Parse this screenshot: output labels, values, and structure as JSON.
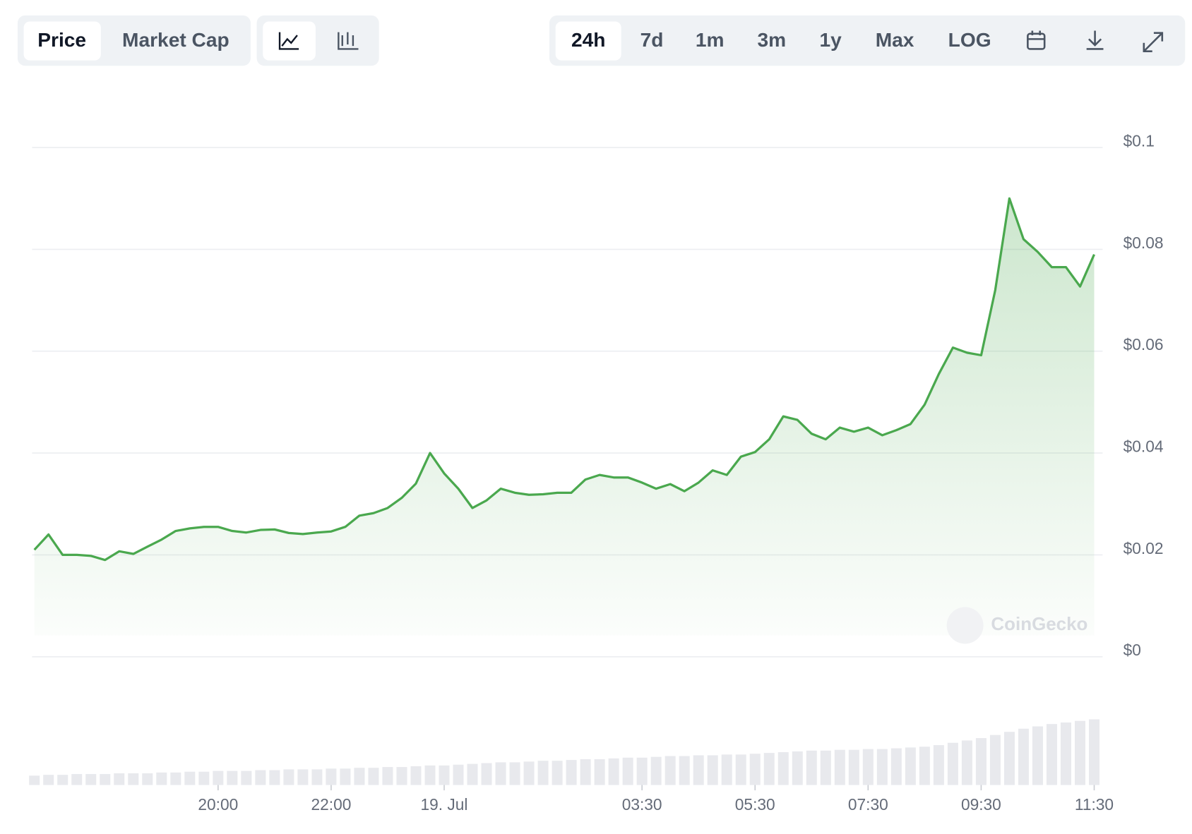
{
  "header": {
    "tabs": [
      "Price",
      "Market Cap"
    ],
    "ranges": [
      "24h",
      "7d",
      "1m",
      "3m",
      "1y",
      "Max",
      "LOG"
    ]
  },
  "watermark": "CoinGecko",
  "chart_data": {
    "type": "line",
    "color": "#4aa84e",
    "volume_color": "#e8e9ed",
    "grid": true,
    "x": [
      "16:45",
      "17:00",
      "17:15",
      "17:30",
      "17:45",
      "18:00",
      "18:15",
      "18:30",
      "18:45",
      "19:00",
      "19:15",
      "19:30",
      "19:45",
      "20:00",
      "20:15",
      "20:30",
      "20:45",
      "21:00",
      "21:15",
      "21:30",
      "21:45",
      "22:00",
      "22:15",
      "22:30",
      "22:45",
      "23:00",
      "23:15",
      "23:30",
      "23:45",
      "00:00",
      "00:15",
      "00:30",
      "00:45",
      "01:00",
      "01:15",
      "01:30",
      "01:45",
      "02:00",
      "02:15",
      "02:30",
      "02:45",
      "03:00",
      "03:15",
      "03:30",
      "03:45",
      "04:00",
      "04:15",
      "04:30",
      "04:45",
      "05:00",
      "05:15",
      "05:30",
      "05:45",
      "06:00",
      "06:15",
      "06:30",
      "06:45",
      "07:00",
      "07:15",
      "07:30",
      "07:45",
      "08:00",
      "08:15",
      "08:30",
      "08:45",
      "09:00",
      "09:15",
      "09:30",
      "09:45",
      "10:00",
      "10:15",
      "10:30",
      "10:45",
      "11:00",
      "11:15",
      "11:30"
    ],
    "values": [
      0.021,
      0.024,
      0.02,
      0.02,
      0.0198,
      0.019,
      0.0207,
      0.0202,
      0.0216,
      0.023,
      0.0247,
      0.0252,
      0.0255,
      0.0255,
      0.0247,
      0.0244,
      0.0249,
      0.025,
      0.0243,
      0.0241,
      0.0244,
      0.0246,
      0.0255,
      0.0277,
      0.0282,
      0.0292,
      0.0312,
      0.034,
      0.04,
      0.036,
      0.033,
      0.0292,
      0.0307,
      0.033,
      0.0322,
      0.0318,
      0.0319,
      0.0322,
      0.0322,
      0.0348,
      0.0357,
      0.0352,
      0.0352,
      0.0342,
      0.033,
      0.0339,
      0.0325,
      0.0342,
      0.0366,
      0.0357,
      0.0393,
      0.0402,
      0.0427,
      0.0472,
      0.0465,
      0.0438,
      0.0427,
      0.045,
      0.0442,
      0.045,
      0.0435,
      0.0445,
      0.0457,
      0.0495,
      0.0555,
      0.0607,
      0.0597,
      0.0592,
      0.072,
      0.09,
      0.082,
      0.0795,
      0.0765,
      0.0765,
      0.0727,
      0.079
    ],
    "volume": [
      12,
      13,
      13,
      14,
      14,
      14,
      15,
      15,
      15,
      16,
      16,
      17,
      17,
      18,
      18,
      18,
      19,
      19,
      20,
      20,
      20,
      21,
      21,
      22,
      22,
      23,
      23,
      24,
      25,
      25,
      26,
      27,
      28,
      29,
      29,
      30,
      31,
      31,
      32,
      33,
      33,
      34,
      35,
      35,
      36,
      37,
      37,
      38,
      38,
      39,
      39,
      40,
      41,
      42,
      43,
      44,
      44,
      45,
      45,
      46,
      46,
      47,
      48,
      49,
      51,
      54,
      57,
      60,
      64,
      68,
      72,
      75,
      78,
      80,
      82,
      84
    ],
    "ylim": [
      0,
      0.1
    ],
    "yticks": [
      {
        "value": 0,
        "label": "$0"
      },
      {
        "value": 0.02,
        "label": "$0.02"
      },
      {
        "value": 0.04,
        "label": "$0.04"
      },
      {
        "value": 0.06,
        "label": "$0.06"
      },
      {
        "value": 0.08,
        "label": "$0.08"
      },
      {
        "value": 0.1,
        "label": "$0.1"
      }
    ],
    "xticks": [
      {
        "value": "20:00",
        "label": "20:00"
      },
      {
        "value": "22:00",
        "label": "22:00"
      },
      {
        "value": "00:00",
        "label": "19. Jul"
      },
      {
        "value": "03:30",
        "label": "03:30"
      },
      {
        "value": "05:30",
        "label": "05:30"
      },
      {
        "value": "07:30",
        "label": "07:30"
      },
      {
        "value": "09:30",
        "label": "09:30"
      },
      {
        "value": "11:30",
        "label": "11:30"
      }
    ]
  }
}
